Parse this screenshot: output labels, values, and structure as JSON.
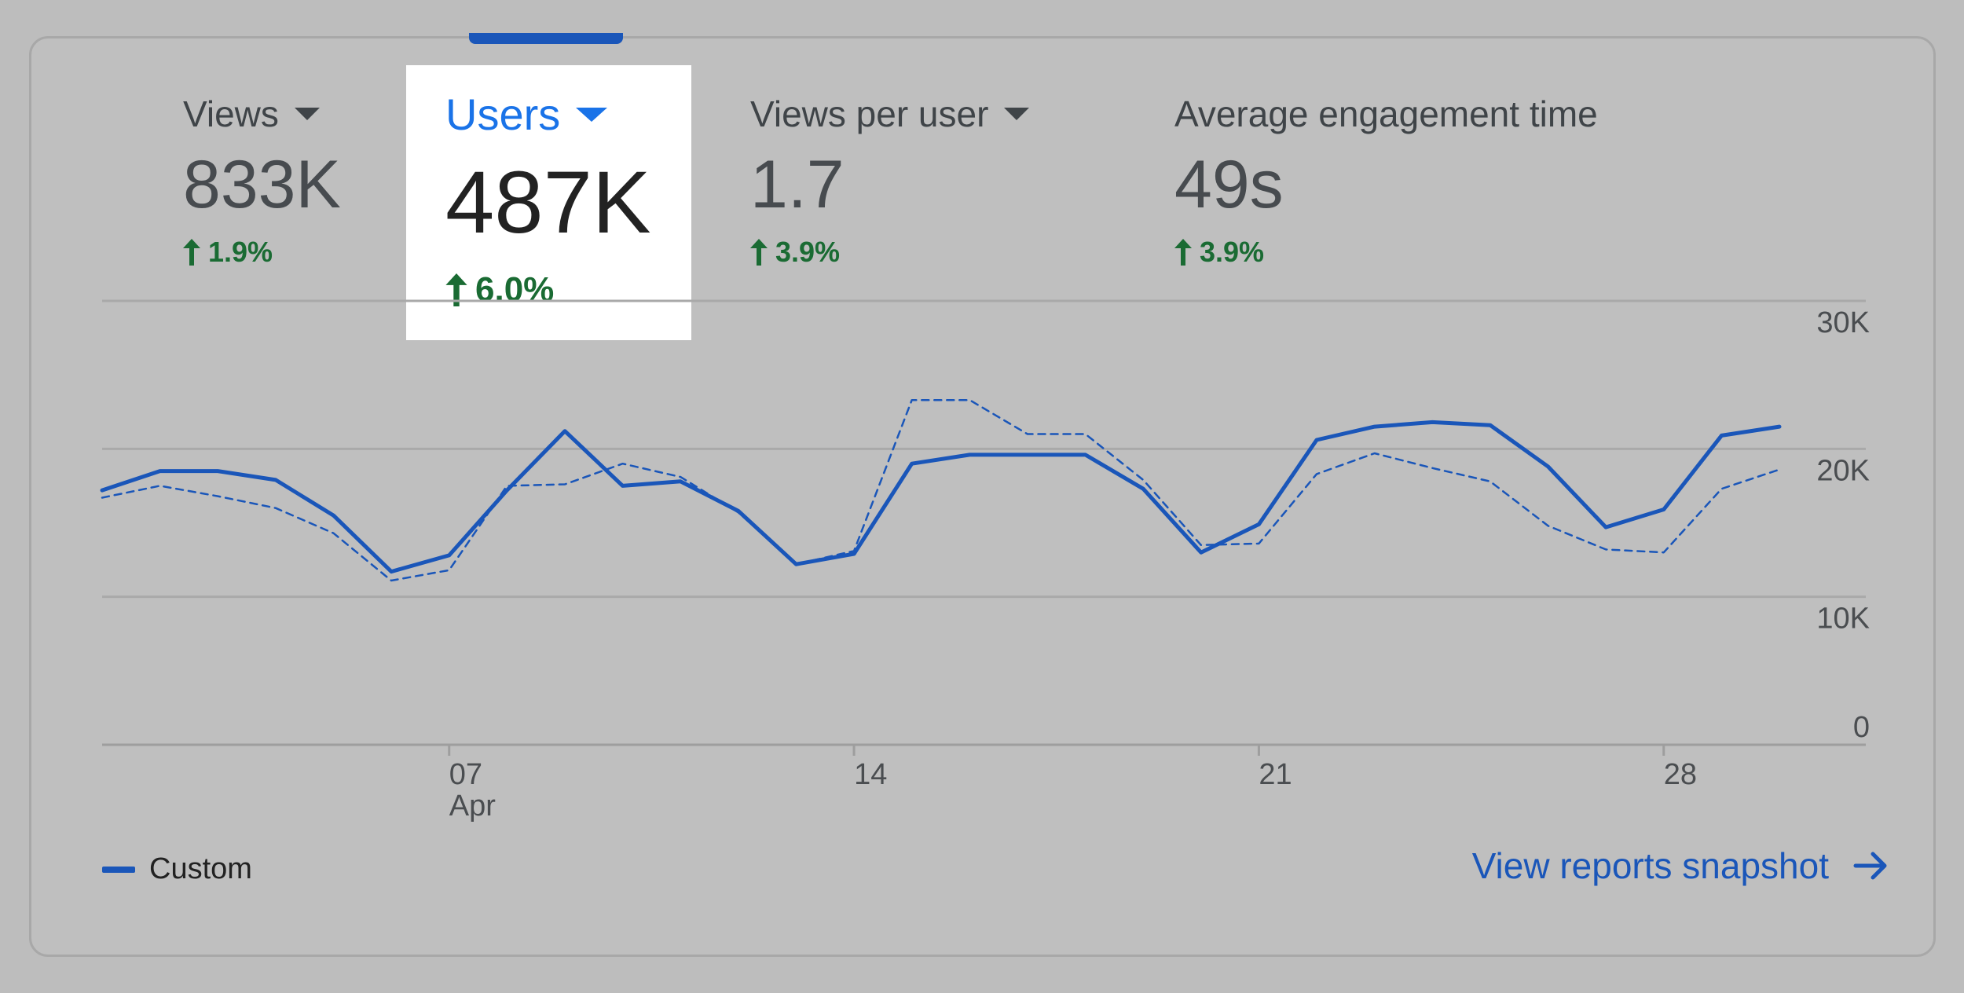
{
  "metrics": [
    {
      "label": "Views",
      "value": "833K",
      "change": "1.9%",
      "has_dropdown": true
    },
    {
      "label": "Users",
      "value": "487K",
      "change": "6.0%",
      "has_dropdown": true,
      "selected": true
    },
    {
      "label": "Views per user",
      "value": "1.7",
      "change": "3.9%",
      "has_dropdown": true
    },
    {
      "label": "Average engagement time",
      "value": "49s",
      "change": "3.9%",
      "has_dropdown": false
    }
  ],
  "colors": {
    "accent": "#1a56b9",
    "selected_label": "#1a73e8",
    "positive_change": "#1a6b33",
    "background": "#bdbdbd"
  },
  "icons": {
    "dropdown": "caret-down-icon",
    "change": "arrow-up-icon",
    "link": "arrow-right-icon"
  },
  "chart_data": {
    "type": "line",
    "x": [
      1,
      2,
      3,
      4,
      5,
      6,
      7,
      8,
      9,
      10,
      11,
      12,
      13,
      14,
      15,
      16,
      17,
      18,
      19,
      20,
      21,
      22,
      23,
      24,
      25,
      26,
      27,
      28,
      29,
      30
    ],
    "x_ticks": [
      {
        "x": 7,
        "label": "07",
        "sublabel": "Apr"
      },
      {
        "x": 14,
        "label": "14",
        "sublabel": ""
      },
      {
        "x": 21,
        "label": "21",
        "sublabel": ""
      },
      {
        "x": 28,
        "label": "28",
        "sublabel": ""
      }
    ],
    "y_ticks": [
      {
        "value": 0,
        "label": "0"
      },
      {
        "value": 10000,
        "label": "10K"
      },
      {
        "value": 20000,
        "label": "20K"
      },
      {
        "value": 30000,
        "label": "30K"
      }
    ],
    "ylim": [
      0,
      30000
    ],
    "grid": true,
    "series": [
      {
        "name": "Custom",
        "style": "solid",
        "values": [
          17200,
          18500,
          18500,
          17900,
          15500,
          11700,
          12800,
          17200,
          21200,
          17500,
          17800,
          15800,
          12200,
          12900,
          19000,
          19600,
          19600,
          19600,
          17300,
          13000,
          14900,
          20600,
          21500,
          21800,
          21600,
          18800,
          14700,
          15900,
          20900,
          21500
        ]
      },
      {
        "style": "dashed",
        "values": [
          16700,
          17500,
          16800,
          16000,
          14300,
          11100,
          11800,
          17500,
          17600,
          19000,
          18100,
          15700,
          12200,
          13100,
          23300,
          23300,
          21000,
          21000,
          17900,
          13500,
          13600,
          18300,
          19700,
          18700,
          17800,
          14800,
          13200,
          13000,
          17300,
          18600
        ]
      }
    ],
    "legend": {
      "label": "Custom",
      "position": "bottom-left"
    }
  },
  "footer": {
    "link_label": "View reports snapshot"
  }
}
